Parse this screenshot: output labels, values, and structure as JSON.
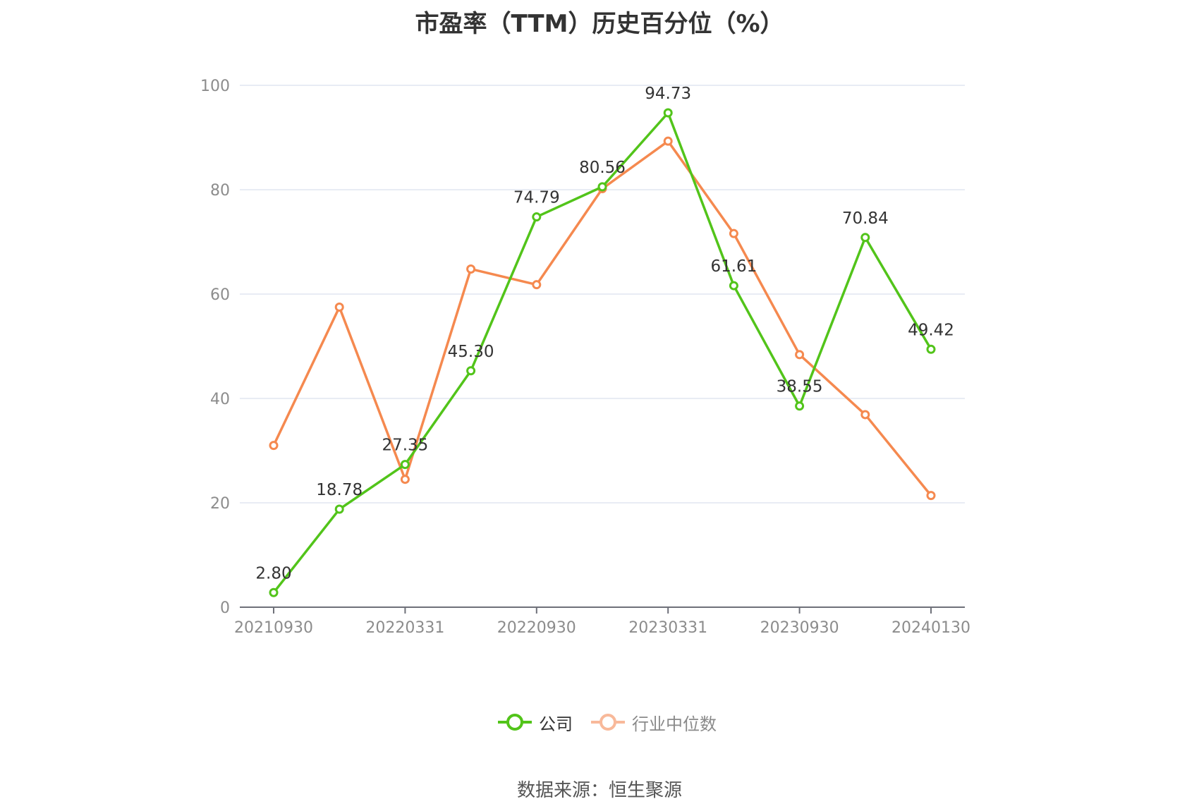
{
  "title": "市盈率（TTM）历史百分位（%）",
  "source": "数据来源：恒生聚源",
  "chart_data": {
    "type": "line",
    "y_ticks": [
      0,
      20,
      40,
      60,
      80,
      100
    ],
    "x_tick_labels": [
      "20210930",
      "20220331",
      "20220930",
      "20230331",
      "20230930",
      "20240130"
    ],
    "x_tick_indices": [
      0,
      2,
      4,
      6,
      8,
      10
    ],
    "ylim": [
      0,
      100
    ],
    "grid": true,
    "legend_position": "bottom",
    "series": [
      {
        "name": "公司",
        "color": "#52c41a",
        "show_labels": true,
        "values": [
          2.8,
          18.78,
          27.35,
          45.3,
          74.79,
          80.56,
          94.73,
          61.61,
          38.55,
          70.84,
          49.42
        ],
        "labels": [
          "2.80",
          "18.78",
          "27.35",
          "45.30",
          "74.79",
          "80.56",
          "94.73",
          "61.61",
          "38.55",
          "70.84",
          "49.42"
        ]
      },
      {
        "name": "行业中位数",
        "color": "#f5894f",
        "show_labels": false,
        "values": [
          31.0,
          57.5,
          24.5,
          64.8,
          61.8,
          80.2,
          89.3,
          71.6,
          48.4,
          36.9,
          21.4
        ]
      }
    ]
  }
}
